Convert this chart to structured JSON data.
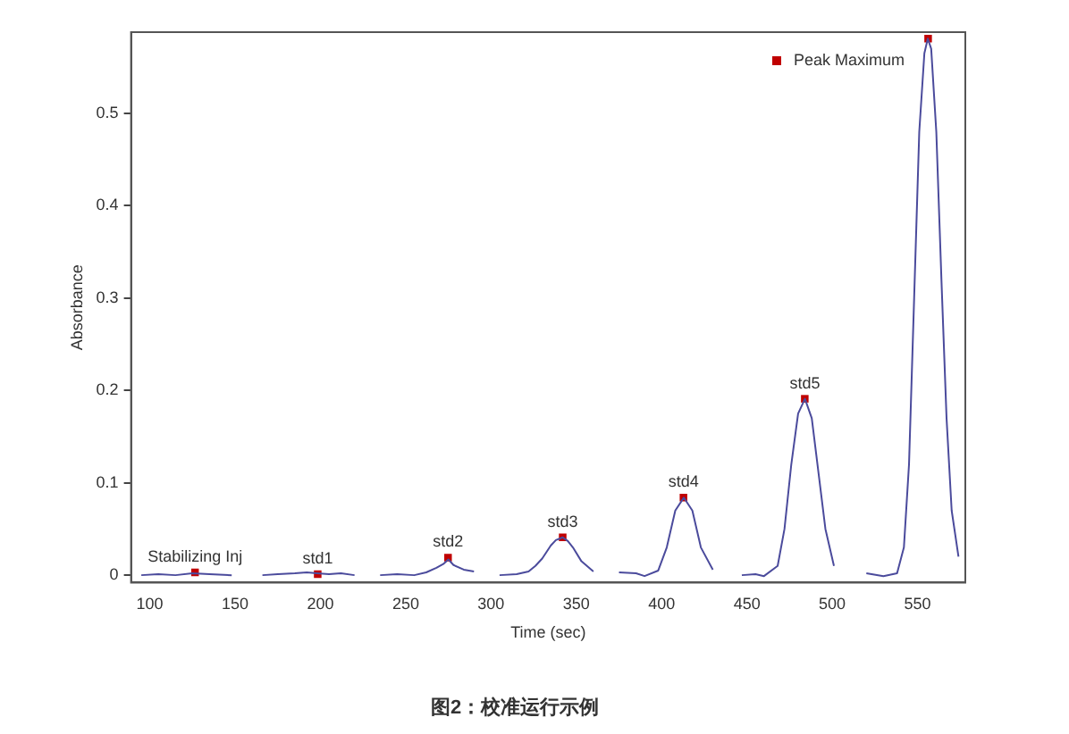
{
  "chart_data": {
    "type": "line",
    "title": "图2：校准运行示例",
    "xlabel": "Time (sec)",
    "ylabel": "Absorbance",
    "xlim": [
      89,
      578
    ],
    "ylim": [
      -0.008,
      0.588
    ],
    "xticks": [
      100,
      150,
      200,
      250,
      300,
      350,
      400,
      450,
      500,
      550
    ],
    "yticks": [
      0,
      0.1,
      0.2,
      0.3,
      0.4,
      0.5
    ],
    "grid": false,
    "legend": "top right",
    "line_style": "solid",
    "series": [
      {
        "color": "#4b4b9c",
        "marker": "none",
        "x": [
          95,
          105,
          115,
          125,
          135,
          148,
          155,
          166,
          175,
          185,
          192,
          198,
          205,
          212,
          220,
          228,
          235,
          245,
          255,
          262,
          268,
          272,
          275,
          278,
          284,
          290,
          298,
          305,
          315,
          322,
          326,
          330,
          335,
          338,
          342,
          345,
          348,
          353,
          360,
          368,
          375,
          385,
          390,
          398,
          403,
          408,
          413,
          418,
          423,
          430,
          438,
          447,
          455,
          460,
          468,
          472,
          476,
          480,
          484,
          488,
          492,
          496,
          501,
          510,
          520,
          530,
          538,
          542,
          545,
          548,
          551,
          554,
          556,
          558,
          561,
          564,
          567,
          570,
          574
        ],
        "values": [
          0,
          0.001,
          0,
          0.002,
          0.001,
          0,
          null,
          0,
          0.001,
          0.002,
          0.003,
          0.002,
          0.001,
          0.002,
          0,
          null,
          0,
          0.001,
          0,
          0.003,
          0.008,
          0.012,
          0.017,
          0.011,
          0.006,
          0.004,
          null,
          0,
          0.001,
          0.004,
          0.01,
          0.018,
          0.032,
          0.038,
          0.041,
          0.037,
          0.03,
          0.015,
          0.004,
          null,
          0.003,
          0.002,
          -0.001,
          0.005,
          0.03,
          0.07,
          0.084,
          0.07,
          0.03,
          0.006,
          null,
          0,
          0.001,
          -0.001,
          0.01,
          0.05,
          0.12,
          0.175,
          0.191,
          0.17,
          0.11,
          0.05,
          0.01,
          null,
          0.002,
          -0.001,
          0.002,
          0.03,
          0.12,
          0.3,
          0.48,
          0.565,
          0.581,
          0.57,
          0.48,
          0.32,
          0.17,
          0.07,
          0.02
        ]
      },
      {
        "type": "scatter",
        "name": "Peak Maximum",
        "color": "#c00000",
        "marker": "square",
        "x": [
          126.5,
          198.4,
          274.8,
          342,
          412.8,
          483.9,
          556.2
        ],
        "values": [
          0.003,
          0.001,
          0.019,
          0.041,
          0.084,
          0.191,
          0.581
        ]
      }
    ],
    "annotations": [
      {
        "text": "Stabilizing Inj",
        "x": 126.5,
        "y": 0.003
      },
      {
        "text": "std1",
        "x": 198.4,
        "y": 0.001
      },
      {
        "text": "std2",
        "x": 274.8,
        "y": 0.019
      },
      {
        "text": "std3",
        "x": 342,
        "y": 0.041
      },
      {
        "text": "std4",
        "x": 412.8,
        "y": 0.084
      },
      {
        "text": "std5",
        "x": 483.9,
        "y": 0.191
      }
    ]
  }
}
